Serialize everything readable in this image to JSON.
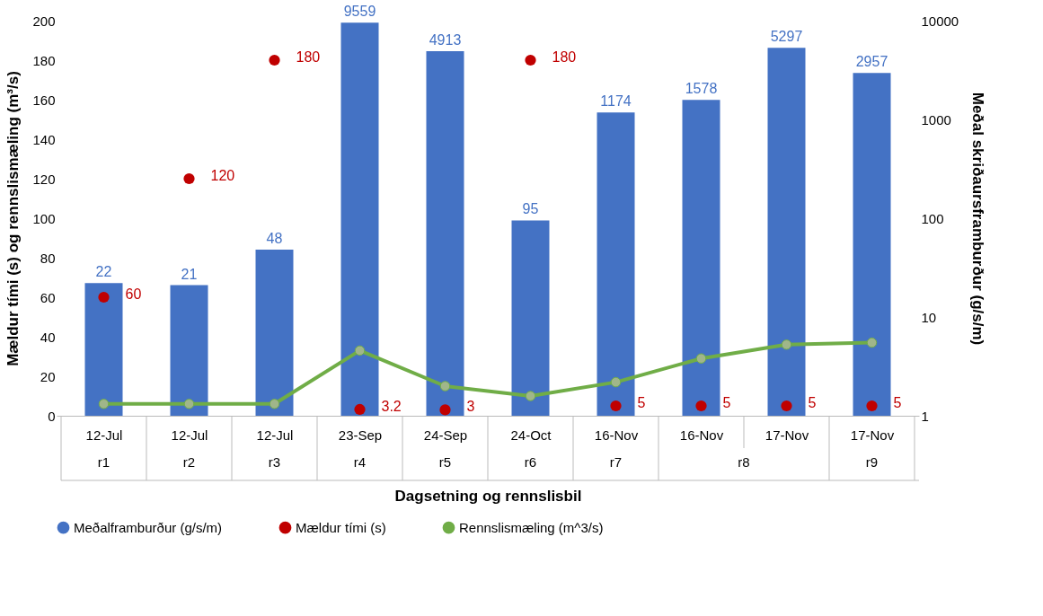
{
  "chart_data": {
    "type": "bar",
    "xlabel": "Dagsetning og rennslisbil",
    "ylabel": "Mældur tími (s) og rennslismæling (m³/s)",
    "y2label": "Meðal skriðaursframburður (g/s/m)",
    "categories": [
      "12-Jul",
      "12-Jul",
      "12-Jul",
      "23-Sep",
      "24-Sep",
      "24-Oct",
      "16-Nov",
      "16-Nov",
      "17-Nov",
      "17-Nov"
    ],
    "series": [
      {
        "name": "Meðalframburður (g/s/m)",
        "axis": "y2",
        "color": "#4472c4",
        "values": [
          22,
          21,
          48,
          9559,
          4913,
          95,
          1174,
          1578,
          5297,
          2957
        ],
        "value_labels": [
          "22",
          "21",
          "48",
          "9559",
          "4913",
          "95",
          "1174",
          "1578",
          "5297",
          "2957"
        ]
      },
      {
        "name": "Mældur tími (s)",
        "type": "scatter",
        "color": "#c00000",
        "values": [
          60,
          120,
          180,
          3.2,
          3,
          180,
          5,
          5,
          5,
          5
        ],
        "value_labels": [
          "60",
          "120",
          "180",
          "3.2",
          "3",
          "180",
          "5",
          "5",
          "5",
          "5"
        ]
      },
      {
        "name": "Rennslismæling (m^3/s)",
        "type": "line",
        "color": "#70ad47",
        "marker": "circle",
        "line_style": "solid",
        "values": [
          6,
          6,
          6,
          33,
          15,
          10,
          17,
          29,
          36,
          37
        ]
      }
    ],
    "ylim": [
      0,
      200
    ],
    "yticks": [
      0,
      20,
      40,
      60,
      80,
      100,
      120,
      140,
      160,
      180,
      200
    ],
    "y2lim": [
      1,
      10000
    ],
    "y2ticks": [
      1,
      10,
      100,
      1000,
      10000
    ],
    "log": "y2",
    "grid": false,
    "legend": "bottom",
    "annotations": [
      "r1",
      "r2",
      "r3",
      "r4",
      "r5",
      "r6",
      "r7",
      "r8",
      "r9"
    ]
  }
}
